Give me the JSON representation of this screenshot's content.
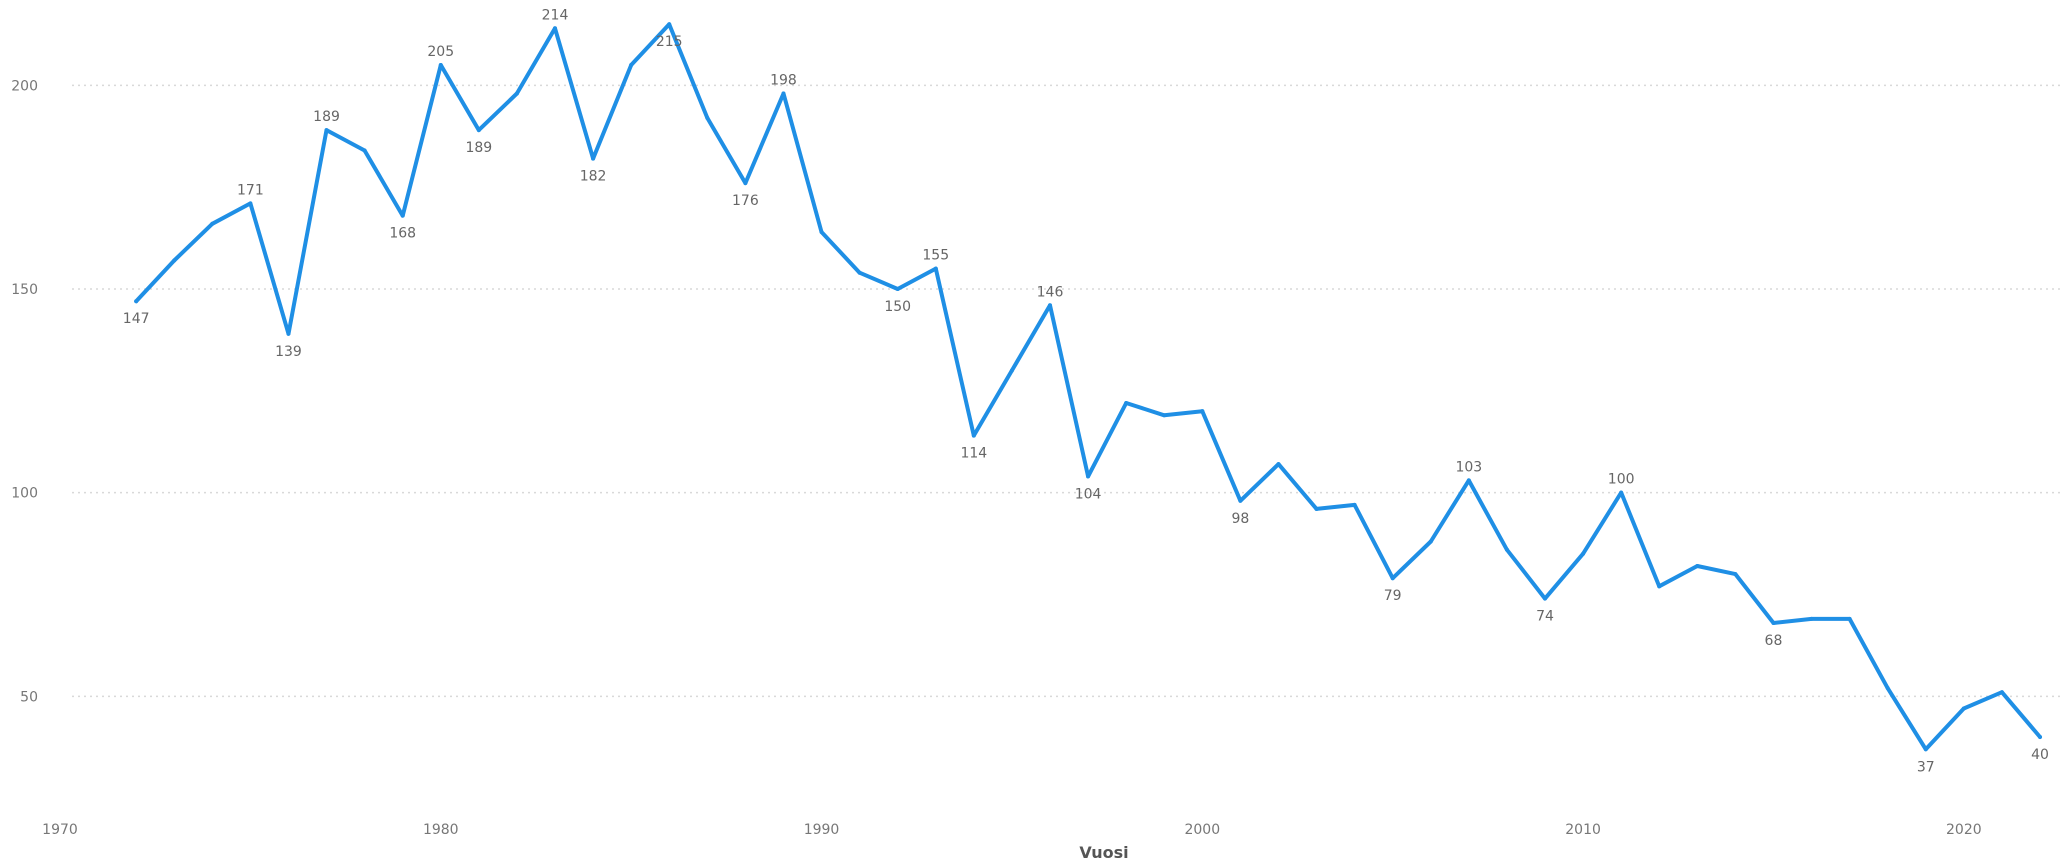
{
  "chart_data": {
    "type": "line",
    "title": "",
    "xlabel": "Vuosi",
    "ylabel": "",
    "xlim": [
      1970,
      2022
    ],
    "ylim": [
      27,
      218
    ],
    "x_ticks": [
      1970,
      1980,
      1990,
      2000,
      2010,
      2020
    ],
    "y_ticks": [
      50,
      100,
      150,
      200
    ],
    "grid": true,
    "legend": "none",
    "colors": {
      "line": "#1f8fe5",
      "grid": "#d9d9d9",
      "text": "#666666"
    },
    "series": [
      {
        "x": [
          1972,
          1973,
          1974,
          1975,
          1976,
          1977,
          1978,
          1979,
          1980,
          1981,
          1982,
          1983,
          1984,
          1985,
          1986,
          1987,
          1988,
          1989,
          1990,
          1991,
          1992,
          1993,
          1994,
          1995,
          1996,
          1997,
          1998,
          1999,
          2000,
          2001,
          2002,
          2003,
          2004,
          2005,
          2006,
          2007,
          2008,
          2009,
          2010,
          2011,
          2012,
          2013,
          2014,
          2015,
          2016,
          2017,
          2018,
          2019,
          2020,
          2021,
          2022
        ],
        "values": [
          147,
          157,
          166,
          171,
          139,
          189,
          184,
          168,
          205,
          189,
          198,
          214,
          182,
          205,
          215,
          192,
          176,
          198,
          164,
          154,
          150,
          155,
          114,
          130,
          146,
          104,
          122,
          119,
          120,
          98,
          107,
          96,
          97,
          79,
          88,
          103,
          86,
          74,
          85,
          100,
          77,
          82,
          80,
          68,
          69,
          69,
          52,
          37,
          47,
          51,
          40
        ]
      }
    ],
    "data_labels": [
      {
        "year": 1972,
        "text": "147",
        "position": "below"
      },
      {
        "year": 1975,
        "text": "171",
        "position": "above"
      },
      {
        "year": 1976,
        "text": "139",
        "position": "below"
      },
      {
        "year": 1977,
        "text": "189",
        "position": "above"
      },
      {
        "year": 1979,
        "text": "168",
        "position": "below"
      },
      {
        "year": 1980,
        "text": "205",
        "position": "above"
      },
      {
        "year": 1981,
        "text": "189",
        "position": "below"
      },
      {
        "year": 1983,
        "text": "214",
        "position": "above"
      },
      {
        "year": 1984,
        "text": "182",
        "position": "below"
      },
      {
        "year": 1986,
        "text": "215",
        "position": "below"
      },
      {
        "year": 1988,
        "text": "176",
        "position": "below"
      },
      {
        "year": 1989,
        "text": "198",
        "position": "above"
      },
      {
        "year": 1992,
        "text": "150",
        "position": "below"
      },
      {
        "year": 1993,
        "text": "155",
        "position": "above"
      },
      {
        "year": 1994,
        "text": "114",
        "position": "below"
      },
      {
        "year": 1996,
        "text": "146",
        "position": "above"
      },
      {
        "year": 1997,
        "text": "104",
        "position": "below"
      },
      {
        "year": 2001,
        "text": "98",
        "position": "below"
      },
      {
        "year": 2005,
        "text": "79",
        "position": "below"
      },
      {
        "year": 2007,
        "text": "103",
        "position": "above"
      },
      {
        "year": 2009,
        "text": "74",
        "position": "below"
      },
      {
        "year": 2011,
        "text": "100",
        "position": "above"
      },
      {
        "year": 2015,
        "text": "68",
        "position": "below"
      },
      {
        "year": 2019,
        "text": "37",
        "position": "below"
      },
      {
        "year": 2022,
        "text": "40",
        "position": "below"
      }
    ]
  }
}
